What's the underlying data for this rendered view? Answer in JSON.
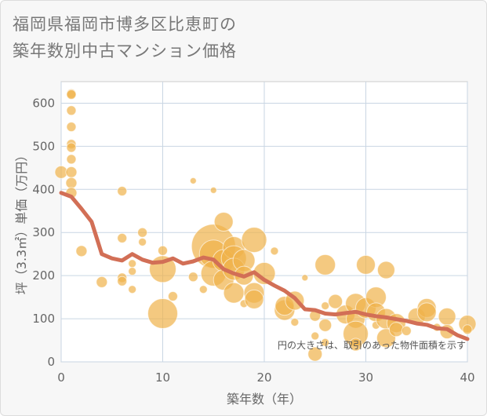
{
  "title_line1": "福岡県福岡市博多区比恵町の",
  "title_line2": "築年数別中古マンション価格",
  "chart_data": {
    "type": "scatter",
    "xlabel": "築年数（年）",
    "ylabel": "坪（3.3㎡）単価（万円）",
    "xlim": [
      0,
      40
    ],
    "ylim": [
      0,
      650
    ],
    "xticks": [
      0,
      10,
      20,
      30,
      40
    ],
    "yticks": [
      0,
      100,
      200,
      300,
      400,
      500,
      600
    ],
    "grid": true,
    "note": "円の大きさは、取引のあった物件面積を示す",
    "colors": {
      "bubble": "#f0b24a",
      "line": "#d26f56",
      "grid": "#c9d6e3"
    },
    "scatter": [
      {
        "x": 0,
        "y": 440,
        "s": 8
      },
      {
        "x": 1,
        "y": 622,
        "s": 6
      },
      {
        "x": 1,
        "y": 620,
        "s": 6
      },
      {
        "x": 1,
        "y": 583,
        "s": 6
      },
      {
        "x": 1,
        "y": 545,
        "s": 6
      },
      {
        "x": 1,
        "y": 505,
        "s": 6
      },
      {
        "x": 1,
        "y": 497,
        "s": 6
      },
      {
        "x": 1,
        "y": 470,
        "s": 6
      },
      {
        "x": 1,
        "y": 440,
        "s": 7
      },
      {
        "x": 1,
        "y": 415,
        "s": 7
      },
      {
        "x": 1,
        "y": 392,
        "s": 7
      },
      {
        "x": 2,
        "y": 257,
        "s": 7
      },
      {
        "x": 4,
        "y": 185,
        "s": 7
      },
      {
        "x": 6,
        "y": 396,
        "s": 6
      },
      {
        "x": 6,
        "y": 287,
        "s": 6
      },
      {
        "x": 6,
        "y": 195,
        "s": 6
      },
      {
        "x": 6,
        "y": 187,
        "s": 6
      },
      {
        "x": 7,
        "y": 228,
        "s": 5
      },
      {
        "x": 7,
        "y": 210,
        "s": 5
      },
      {
        "x": 7,
        "y": 168,
        "s": 5
      },
      {
        "x": 8,
        "y": 300,
        "s": 6
      },
      {
        "x": 8,
        "y": 278,
        "s": 5
      },
      {
        "x": 10,
        "y": 258,
        "s": 6
      },
      {
        "x": 10,
        "y": 215,
        "s": 17
      },
      {
        "x": 10,
        "y": 112,
        "s": 19
      },
      {
        "x": 11,
        "y": 152,
        "s": 6
      },
      {
        "x": 13,
        "y": 420,
        "s": 4
      },
      {
        "x": 13,
        "y": 197,
        "s": 6
      },
      {
        "x": 14,
        "y": 168,
        "s": 5
      },
      {
        "x": 15,
        "y": 398,
        "s": 4
      },
      {
        "x": 15,
        "y": 268,
        "s": 28
      },
      {
        "x": 15,
        "y": 250,
        "s": 18
      },
      {
        "x": 15,
        "y": 205,
        "s": 16
      },
      {
        "x": 16,
        "y": 325,
        "s": 12
      },
      {
        "x": 16,
        "y": 235,
        "s": 14
      },
      {
        "x": 16,
        "y": 190,
        "s": 13
      },
      {
        "x": 17,
        "y": 265,
        "s": 14
      },
      {
        "x": 17,
        "y": 240,
        "s": 16
      },
      {
        "x": 17,
        "y": 215,
        "s": 14
      },
      {
        "x": 17,
        "y": 160,
        "s": 13
      },
      {
        "x": 18,
        "y": 235,
        "s": 14
      },
      {
        "x": 18,
        "y": 200,
        "s": 12
      },
      {
        "x": 18,
        "y": 135,
        "s": 5
      },
      {
        "x": 19,
        "y": 283,
        "s": 16
      },
      {
        "x": 19,
        "y": 160,
        "s": 13
      },
      {
        "x": 19,
        "y": 145,
        "s": 12
      },
      {
        "x": 20,
        "y": 205,
        "s": 14
      },
      {
        "x": 21,
        "y": 257,
        "s": 5
      },
      {
        "x": 22,
        "y": 120,
        "s": 13
      },
      {
        "x": 22,
        "y": 130,
        "s": 12
      },
      {
        "x": 23,
        "y": 142,
        "s": 12
      },
      {
        "x": 23,
        "y": 92,
        "s": 5
      },
      {
        "x": 24,
        "y": 195,
        "s": 4
      },
      {
        "x": 25,
        "y": 107,
        "s": 7
      },
      {
        "x": 25,
        "y": 60,
        "s": 5
      },
      {
        "x": 25,
        "y": 18,
        "s": 9
      },
      {
        "x": 26,
        "y": 225,
        "s": 13
      },
      {
        "x": 26,
        "y": 130,
        "s": 5
      },
      {
        "x": 26,
        "y": 85,
        "s": 8
      },
      {
        "x": 26,
        "y": 45,
        "s": 5
      },
      {
        "x": 27,
        "y": 140,
        "s": 9
      },
      {
        "x": 28,
        "y": 110,
        "s": 12
      },
      {
        "x": 29,
        "y": 135,
        "s": 13
      },
      {
        "x": 29,
        "y": 100,
        "s": 12
      },
      {
        "x": 29,
        "y": 65,
        "s": 16
      },
      {
        "x": 29,
        "y": 40,
        "s": 8
      },
      {
        "x": 30,
        "y": 225,
        "s": 12
      },
      {
        "x": 30,
        "y": 125,
        "s": 13
      },
      {
        "x": 31,
        "y": 150,
        "s": 13
      },
      {
        "x": 31,
        "y": 115,
        "s": 12
      },
      {
        "x": 31,
        "y": 85,
        "s": 5
      },
      {
        "x": 32,
        "y": 213,
        "s": 11
      },
      {
        "x": 32,
        "y": 100,
        "s": 13
      },
      {
        "x": 32,
        "y": 55,
        "s": 12
      },
      {
        "x": 33,
        "y": 90,
        "s": 12
      },
      {
        "x": 33,
        "y": 75,
        "s": 9
      },
      {
        "x": 34,
        "y": 72,
        "s": 6
      },
      {
        "x": 35,
        "y": 105,
        "s": 11
      },
      {
        "x": 36,
        "y": 125,
        "s": 12
      },
      {
        "x": 36,
        "y": 115,
        "s": 12
      },
      {
        "x": 37,
        "y": 80,
        "s": 5
      },
      {
        "x": 38,
        "y": 105,
        "s": 11
      },
      {
        "x": 38,
        "y": 70,
        "s": 9
      },
      {
        "x": 40,
        "y": 88,
        "s": 11
      },
      {
        "x": 40,
        "y": 75,
        "s": 6
      }
    ],
    "line": [
      {
        "x": 0,
        "y": 392
      },
      {
        "x": 1,
        "y": 383
      },
      {
        "x": 2,
        "y": 355
      },
      {
        "x": 3,
        "y": 325
      },
      {
        "x": 4,
        "y": 250
      },
      {
        "x": 5,
        "y": 240
      },
      {
        "x": 6,
        "y": 235
      },
      {
        "x": 7,
        "y": 250
      },
      {
        "x": 8,
        "y": 237
      },
      {
        "x": 9,
        "y": 230
      },
      {
        "x": 10,
        "y": 232
      },
      {
        "x": 11,
        "y": 240
      },
      {
        "x": 12,
        "y": 228
      },
      {
        "x": 13,
        "y": 233
      },
      {
        "x": 14,
        "y": 242
      },
      {
        "x": 15,
        "y": 237
      },
      {
        "x": 16,
        "y": 215
      },
      {
        "x": 17,
        "y": 205
      },
      {
        "x": 18,
        "y": 198
      },
      {
        "x": 19,
        "y": 208
      },
      {
        "x": 20,
        "y": 190
      },
      {
        "x": 21,
        "y": 177
      },
      {
        "x": 22,
        "y": 165
      },
      {
        "x": 23,
        "y": 148
      },
      {
        "x": 24,
        "y": 122
      },
      {
        "x": 25,
        "y": 120
      },
      {
        "x": 26,
        "y": 112
      },
      {
        "x": 27,
        "y": 110
      },
      {
        "x": 28,
        "y": 113
      },
      {
        "x": 29,
        "y": 116
      },
      {
        "x": 30,
        "y": 110
      },
      {
        "x": 31,
        "y": 106
      },
      {
        "x": 32,
        "y": 103
      },
      {
        "x": 33,
        "y": 99
      },
      {
        "x": 34,
        "y": 95
      },
      {
        "x": 35,
        "y": 89
      },
      {
        "x": 36,
        "y": 86
      },
      {
        "x": 37,
        "y": 78
      },
      {
        "x": 38,
        "y": 76
      },
      {
        "x": 39,
        "y": 62
      },
      {
        "x": 40,
        "y": 53
      }
    ]
  }
}
